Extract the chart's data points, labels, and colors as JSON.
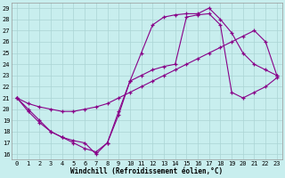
{
  "xlabel": "Windchill (Refroidissement éolien,°C)",
  "bg_color": "#c8eeee",
  "grid_color": "#aad4d4",
  "line_color": "#880088",
  "xlim": [
    -0.5,
    23.5
  ],
  "ylim": [
    15.5,
    29.5
  ],
  "xticks": [
    0,
    1,
    2,
    3,
    4,
    5,
    6,
    7,
    8,
    9,
    10,
    11,
    12,
    13,
    14,
    15,
    16,
    17,
    18,
    19,
    20,
    21,
    22,
    23
  ],
  "yticks": [
    16,
    17,
    18,
    19,
    20,
    21,
    22,
    23,
    24,
    25,
    26,
    27,
    28,
    29
  ],
  "line1_x": [
    0,
    1,
    2,
    3,
    4,
    5,
    6,
    7,
    8,
    9,
    10,
    11,
    12,
    13,
    14,
    15,
    16,
    17,
    18,
    19,
    20,
    21,
    22,
    23
  ],
  "line1_y": [
    21,
    20,
    19,
    18,
    17.5,
    17,
    16.5,
    16.2,
    17,
    19.5,
    22.5,
    25.0,
    27.5,
    28.2,
    28.4,
    28.5,
    28.5,
    29.0,
    28.0,
    26.8,
    25.0,
    24.0,
    23.5,
    23.0
  ],
  "line2_x": [
    0,
    1,
    2,
    3,
    4,
    5,
    6,
    7,
    8,
    9,
    10,
    11,
    12,
    13,
    14,
    15,
    16,
    17,
    18,
    19,
    20,
    21,
    22,
    23
  ],
  "line2_y": [
    21,
    20.5,
    20.2,
    20.0,
    19.8,
    19.8,
    20.0,
    20.2,
    20.5,
    21.0,
    21.5,
    22.0,
    22.5,
    23.0,
    23.5,
    24.0,
    24.5,
    25.0,
    25.5,
    26.0,
    26.5,
    27.0,
    26.0,
    23.0
  ],
  "line3_x": [
    0,
    1,
    2,
    3,
    4,
    5,
    6,
    7,
    8,
    9,
    10,
    11,
    12,
    13,
    14,
    15,
    16,
    17,
    18,
    19,
    20,
    21,
    22,
    23
  ],
  "line3_y": [
    21,
    19.8,
    18.8,
    18.0,
    17.5,
    17.2,
    17.0,
    16.0,
    17.0,
    19.8,
    22.5,
    23.0,
    23.5,
    23.8,
    24.0,
    28.2,
    28.4,
    28.5,
    27.5,
    21.5,
    21.0,
    21.5,
    22.0,
    22.8
  ]
}
